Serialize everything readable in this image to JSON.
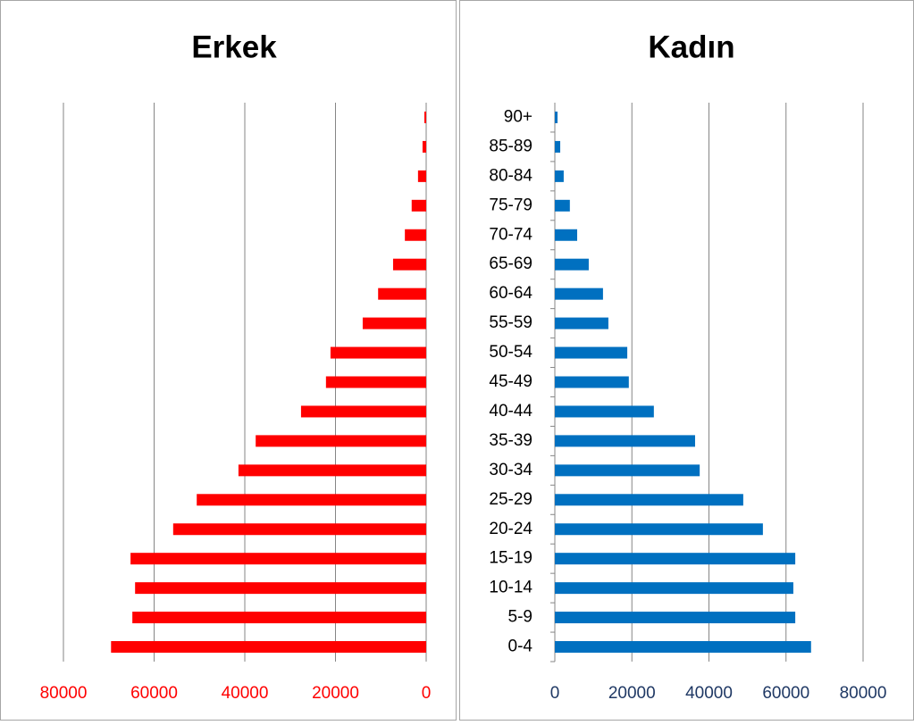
{
  "chart_data": [
    {
      "type": "bar",
      "orientation": "horizontal",
      "title": "Erkek",
      "x_reversed": true,
      "color": "#ff0000",
      "tick_color": "#ff0000",
      "values": [
        69500,
        64800,
        64200,
        65200,
        55800,
        50600,
        41400,
        37600,
        27600,
        22100,
        21100,
        14000,
        10600,
        7300,
        4700,
        3200,
        1800,
        800,
        400
      ],
      "xlim": [
        0,
        80000
      ],
      "xticks": [
        0,
        20000,
        40000,
        60000,
        80000
      ],
      "grid": true
    },
    {
      "type": "bar",
      "orientation": "horizontal",
      "title": "Kadın",
      "x_reversed": false,
      "color": "#0070c0",
      "tick_color": "#1f3864",
      "categories": [
        "0-4",
        "5-9",
        "10-14",
        "15-19",
        "20-24",
        "25-29",
        "30-34",
        "35-39",
        "40-44",
        "45-49",
        "50-54",
        "55-59",
        "60-64",
        "65-69",
        "70-74",
        "75-79",
        "80-84",
        "85-89",
        "90+"
      ],
      "values": [
        66500,
        62400,
        61900,
        62400,
        54000,
        48900,
        37600,
        36400,
        25700,
        19200,
        18800,
        13900,
        12500,
        8800,
        5800,
        3900,
        2300,
        1400,
        700
      ],
      "xlim": [
        0,
        80000
      ],
      "xticks": [
        0,
        20000,
        40000,
        60000,
        80000
      ],
      "grid": true
    }
  ]
}
